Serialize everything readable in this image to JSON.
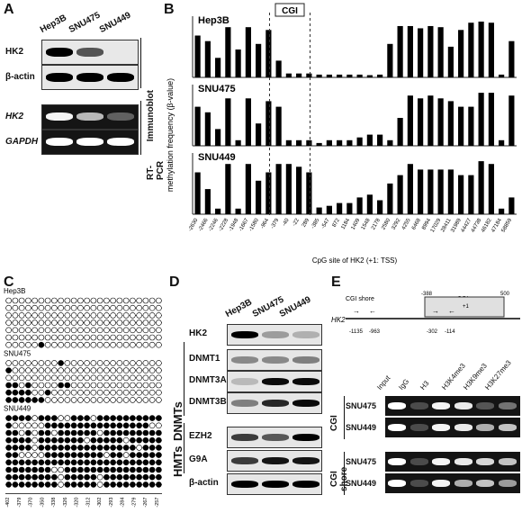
{
  "panels": {
    "a": "A",
    "b": "B",
    "c": "C",
    "d": "D",
    "e": "E"
  },
  "panel_a": {
    "lanes": [
      "Hep3B",
      "SNU475",
      "SNU449"
    ],
    "blots": [
      {
        "label": "HK2",
        "italic": false,
        "bands": [
          1.0,
          0.55,
          0.0
        ],
        "kind": "wb"
      },
      {
        "label": "β-actin",
        "italic": false,
        "bands": [
          1.0,
          1.0,
          1.0
        ],
        "kind": "wb"
      },
      {
        "label": "HK2",
        "italic": true,
        "bands": [
          0.95,
          0.6,
          0.1
        ],
        "kind": "gel"
      },
      {
        "label": "GAPDH",
        "italic": true,
        "bands": [
          1.0,
          1.0,
          1.0
        ],
        "kind": "gel"
      }
    ],
    "side_labels": [
      "Immunoblot",
      "RT-PCR"
    ]
  },
  "chart_data": {
    "type": "bar",
    "title": "",
    "ylabel": "methylation frequency (β-value)",
    "xlabel": "CpG site of HK2 (+1: TSS)",
    "cgi_label": "CGI",
    "categories": [
      "-2630",
      "-2466",
      "-2246",
      "-2228",
      "-1948",
      "-1667",
      "-1580",
      "-964",
      "-379",
      "-40",
      "-22",
      "289",
      "-385",
      "-547",
      "872",
      "1184",
      "1409",
      "1548",
      "2178",
      "2580",
      "3292",
      "4255",
      "6468",
      "8994",
      "17029",
      "28411",
      "31989",
      "44427",
      "44738",
      "46182",
      "47184",
      "58859"
    ],
    "series": [
      {
        "name": "Hep3B",
        "values": [
          0.75,
          0.65,
          0.35,
          0.9,
          0.5,
          0.9,
          0.6,
          0.85,
          0.3,
          0.07,
          0.07,
          0.07,
          0.05,
          0.05,
          0.05,
          0.05,
          0.05,
          0.04,
          0.05,
          0.6,
          0.92,
          0.92,
          0.88,
          0.92,
          0.9,
          0.55,
          0.85,
          0.98,
          1.0,
          0.98,
          0.05,
          0.65
        ]
      },
      {
        "name": "SNU475",
        "values": [
          0.7,
          0.6,
          0.3,
          0.85,
          0.1,
          0.85,
          0.4,
          0.8,
          0.7,
          0.1,
          0.1,
          0.1,
          0.05,
          0.1,
          0.1,
          0.1,
          0.15,
          0.2,
          0.2,
          0.1,
          0.5,
          0.9,
          0.85,
          0.9,
          0.85,
          0.8,
          0.7,
          0.7,
          0.95,
          0.95,
          0.1,
          0.9
        ]
      },
      {
        "name": "SNU449",
        "values": [
          0.75,
          0.45,
          0.1,
          0.9,
          0.1,
          0.9,
          0.6,
          0.75,
          0.9,
          0.9,
          0.85,
          0.75,
          0.12,
          0.15,
          0.2,
          0.2,
          0.3,
          0.35,
          0.25,
          0.55,
          0.7,
          0.9,
          0.8,
          0.8,
          0.8,
          0.8,
          0.7,
          0.7,
          0.95,
          0.9,
          0.1,
          0.3
        ]
      }
    ],
    "ylim": [
      0,
      1
    ]
  },
  "panel_c": {
    "groups": [
      {
        "name": "Hep3B",
        "rows": [
          "000000000000000000000000",
          "000000000000000000000000",
          "000000000000000000000000",
          "000000000000000000000000",
          "000000000000000000000000",
          "000000000000000000000000",
          "000001000000000000000000"
        ]
      },
      {
        "name": "SNU475",
        "rows": [
          "000000001000000000000000",
          "100000000000000000000000",
          "000000000000000000000000",
          "110100001100000000000000",
          "111100100000000000000000",
          "111111000000000000000000"
        ]
      },
      {
        "name": "SNU449",
        "rows": [
          "111101110011101111111111",
          "100000111111111111111100",
          "110101101111110111111111",
          "111101111111011111011111",
          "111101111111111111110111",
          "110000111111111011011111",
          "111111111111111111111111",
          "111111100111111111111111",
          "111111110111110111111111",
          "111111110111110111111111"
        ]
      }
    ],
    "positions": [
      "-402",
      "-379",
      "-370",
      "-350",
      "-338",
      "-326",
      "-320",
      "-312",
      "-302",
      "-293",
      "-284",
      "-279",
      "-267",
      "-257"
    ]
  },
  "panel_d": {
    "lanes": [
      "Hep3B",
      "SNU475",
      "SNU449"
    ],
    "blots": [
      {
        "label": "HK2",
        "bands": [
          1.0,
          0.2,
          0.1
        ]
      },
      {
        "label": "DNMT1",
        "bands": [
          0.3,
          0.3,
          0.35
        ]
      },
      {
        "label": "DNMT3A",
        "bands": [
          0.05,
          0.95,
          0.95
        ]
      },
      {
        "label": "DNMT3B",
        "bands": [
          0.35,
          0.8,
          0.95
        ]
      },
      {
        "label": "EZH2",
        "bands": [
          0.7,
          0.55,
          1.0
        ]
      },
      {
        "label": "G9A",
        "bands": [
          0.7,
          0.9,
          0.9
        ]
      },
      {
        "label": "β-actin",
        "bands": [
          1.0,
          1.0,
          1.0
        ]
      }
    ],
    "groups": [
      "DNMTs",
      "HMTs"
    ]
  },
  "panel_e": {
    "diagram": {
      "gene": "HK2",
      "shore_label": "CGI shore",
      "cgi_label": "CGI",
      "tss": "+1",
      "ticks": [
        "-1135",
        "-963",
        "-302",
        "-114",
        "-388",
        "500"
      ]
    },
    "lanes": [
      "Input",
      "IgG",
      "H3",
      "H3K4me3",
      "H3K9me3",
      "H3K27me3"
    ],
    "blocks": [
      {
        "region": "CGI",
        "rows": [
          {
            "cell": "SNU475",
            "bands": [
              1.0,
              0.1,
              0.95,
              0.9,
              0.15,
              0.3
            ]
          },
          {
            "cell": "SNU449",
            "bands": [
              1.0,
              0.1,
              0.95,
              0.9,
              0.6,
              0.7
            ]
          }
        ]
      },
      {
        "region": "CGI shore",
        "rows": [
          {
            "cell": "SNU475",
            "bands": [
              1.0,
              0.1,
              0.95,
              0.9,
              0.8,
              0.7
            ]
          },
          {
            "cell": "SNU449",
            "bands": [
              1.0,
              0.1,
              0.95,
              0.6,
              0.7,
              0.5
            ]
          }
        ]
      }
    ]
  }
}
